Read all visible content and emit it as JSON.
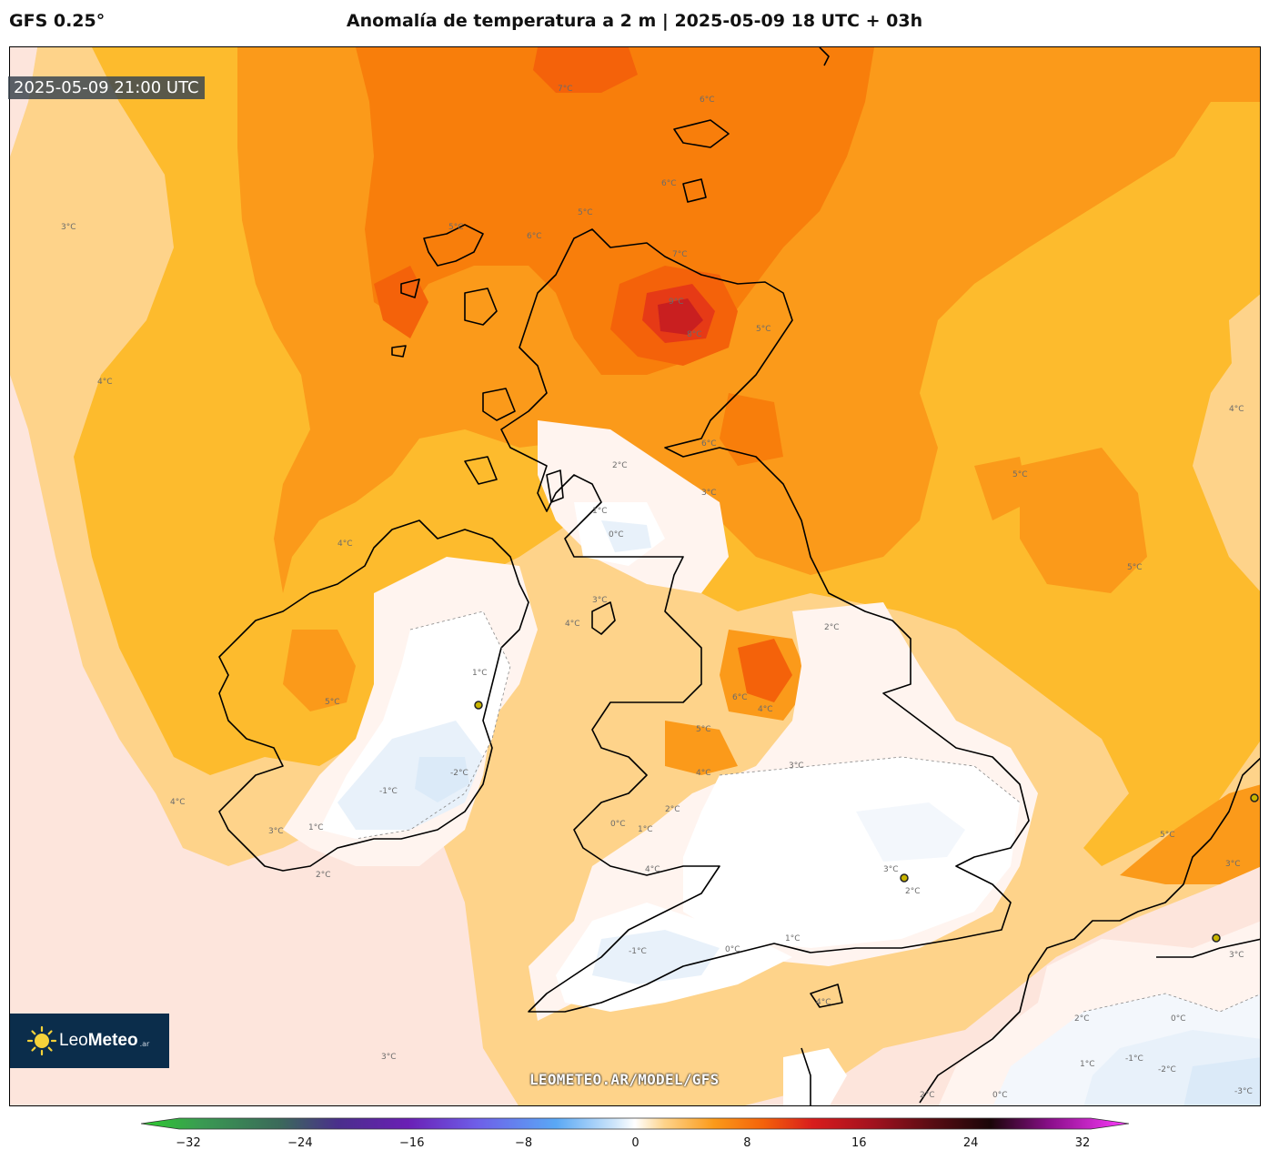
{
  "header": {
    "model": "GFS 0.25°",
    "title": "Anomalía de temperatura a 2 m | 2025-05-09 18 UTC + 03h"
  },
  "map": {
    "valid_time": "2025-05-09 21:00 UTC",
    "watermark": "LEOMETEO.AR/MODEL/GFS",
    "contour_labels": [
      "7°C",
      "6°C",
      "5°C",
      "6°C",
      "4°C",
      "3°C",
      "5°C",
      "6°C",
      "7°C",
      "9°C",
      "8°C",
      "5°C",
      "4°C",
      "6°C",
      "5°C",
      "2°C",
      "3°C",
      "1°C",
      "0°C",
      "3°C",
      "4°C",
      "5°C",
      "6°C",
      "4°C",
      "5°C",
      "4°C",
      "1°C",
      "2°C",
      "-2°C",
      "-1°C",
      "1°C",
      "3°C",
      "2°C",
      "4°C",
      "0°C",
      "1°C",
      "2°C",
      "3°C",
      "-1°C",
      "0°C",
      "1°C",
      "4°C",
      "2°C",
      "3°C",
      "0°C",
      "1°C",
      "-1°C",
      "-2°C",
      "-3°C",
      "0°C",
      "2°C",
      "4°C",
      "5°C",
      "3°C",
      "3°C",
      "2°C",
      "5°C",
      "4°C",
      "3°C"
    ]
  },
  "logo": {
    "brand_light": "Leo",
    "brand_bold": "Meteo",
    "tld": ".ar"
  },
  "colorbar": {
    "ticks": [
      "−32",
      "−24",
      "−16",
      "−8",
      "0",
      "8",
      "16",
      "24",
      "32"
    ],
    "min": -32,
    "max": 32,
    "unit": "°C"
  },
  "colors": {
    "anom_neg3": "#dbeaf8",
    "anom_neg2": "#e8f1fa",
    "anom_neg1": "#f3f7fc",
    "anom_0": "#ffffff",
    "anom_1": "#fff4ef",
    "anom_2": "#fde5dc",
    "anom_3": "#fed38a",
    "anom_4": "#fdbb2d",
    "anom_5": "#fb9a1a",
    "anom_6": "#f87e0b",
    "anom_7": "#f4620a",
    "anom_8": "#e63a16",
    "anom_9": "#c91f20"
  }
}
